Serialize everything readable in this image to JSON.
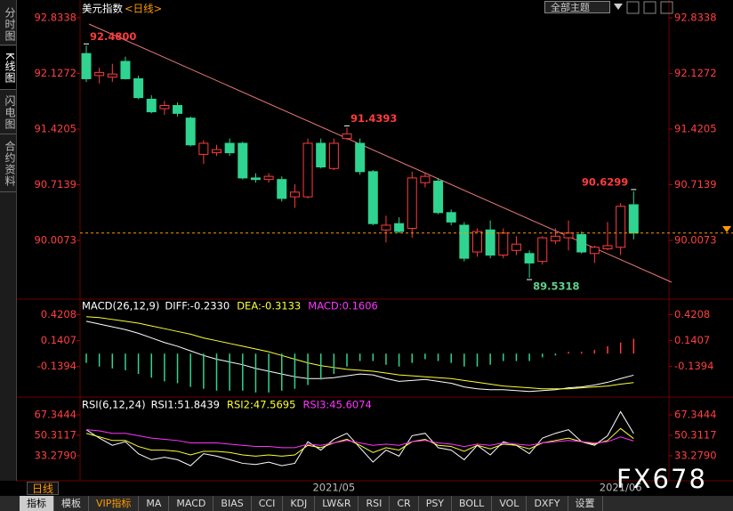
{
  "chart_data": [
    {
      "type": "candlestick",
      "title": "美元指数",
      "subtitle": "<日线>",
      "up_color": "#ff3c3c",
      "down_color": "#2fd490",
      "categories": [
        null,
        null,
        null,
        null,
        null,
        null,
        null,
        null,
        null,
        null,
        null,
        null,
        null,
        null,
        null,
        null,
        null,
        null,
        null,
        "2021/05",
        null,
        null,
        null,
        null,
        null,
        null,
        null,
        null,
        null,
        null,
        null,
        null,
        null,
        null,
        null,
        null,
        null,
        null,
        null,
        null,
        null,
        "2021/06",
        null
      ],
      "open": [
        92.38,
        92.1,
        92.08,
        92.28,
        92.06,
        91.8,
        91.68,
        91.72,
        91.56,
        91.1,
        91.12,
        91.24,
        91.24,
        90.8,
        90.78,
        90.78,
        90.56,
        90.56,
        91.24,
        90.92,
        91.3,
        91.24,
        90.88,
        90.14,
        90.22,
        90.16,
        90.74,
        90.76,
        90.36,
        90.2,
        89.86,
        90.14,
        89.82,
        89.88,
        89.84,
        89.74,
        90.0,
        90.04,
        90.08,
        89.84,
        89.9,
        89.92,
        90.46
      ],
      "high": [
        92.48,
        92.2,
        92.25,
        92.34,
        92.1,
        91.85,
        91.78,
        91.76,
        91.58,
        91.28,
        91.22,
        91.3,
        91.26,
        90.86,
        90.86,
        90.82,
        90.72,
        91.3,
        91.3,
        91.3,
        91.4393,
        91.3,
        90.9,
        90.32,
        90.3,
        90.88,
        90.86,
        90.8,
        90.4,
        90.24,
        90.16,
        90.26,
        90.16,
        90.06,
        89.88,
        90.06,
        90.16,
        90.26,
        90.12,
        89.94,
        90.24,
        90.48,
        90.6299
      ],
      "low": [
        92.02,
        92.0,
        92.02,
        92.05,
        91.8,
        91.62,
        91.6,
        91.58,
        91.2,
        90.98,
        91.08,
        91.08,
        90.78,
        90.74,
        90.74,
        90.5,
        90.42,
        90.54,
        90.92,
        90.9,
        91.28,
        90.84,
        90.2,
        89.98,
        90.1,
        90.04,
        90.68,
        90.34,
        90.2,
        89.74,
        89.8,
        89.78,
        89.78,
        89.82,
        89.5318,
        89.7,
        89.96,
        89.88,
        89.84,
        89.72,
        89.88,
        89.82,
        90.02
      ],
      "close": [
        92.06,
        92.14,
        92.12,
        92.06,
        91.82,
        91.64,
        91.72,
        91.62,
        91.22,
        91.24,
        91.16,
        91.12,
        90.8,
        90.78,
        90.82,
        90.54,
        90.62,
        91.24,
        90.94,
        91.24,
        91.36,
        90.88,
        90.22,
        90.2,
        90.12,
        90.8,
        90.82,
        90.36,
        90.24,
        89.78,
        90.12,
        89.82,
        90.1,
        89.96,
        89.72,
        90.04,
        90.06,
        90.1,
        89.86,
        89.92,
        89.94,
        90.44,
        90.1
      ],
      "markers": [
        {
          "value": 92.48,
          "label": "92.4800"
        },
        91.4393,
        90.6299,
        89.5318
      ],
      "ylim": [
        89.2724,
        93.0034
      ],
      "yticks": [
        92.8338,
        92.1272,
        91.4205,
        90.7139,
        90.0073
      ],
      "last_price_color": "#ff9a00"
    },
    {
      "type": "macd",
      "title": "MACD(26,12,9)",
      "up_color": "#ff3c3c",
      "down_color": "#2fd490",
      "series": [
        {
          "name": "DIFF:-0.2330",
          "color": "#ffffff",
          "values": [
            0.35,
            0.32,
            0.29,
            0.26,
            0.22,
            0.17,
            0.12,
            0.08,
            0.03,
            -0.02,
            -0.06,
            -0.09,
            -0.12,
            -0.16,
            -0.19,
            -0.22,
            -0.25,
            -0.27,
            -0.27,
            -0.26,
            -0.24,
            -0.22,
            -0.23,
            -0.27,
            -0.3,
            -0.29,
            -0.28,
            -0.3,
            -0.32,
            -0.36,
            -0.38,
            -0.39,
            -0.39,
            -0.4,
            -0.41,
            -0.4,
            -0.39,
            -0.37,
            -0.36,
            -0.34,
            -0.31,
            -0.27,
            -0.233
          ]
        },
        {
          "name": "DEA:-0.3133",
          "color": "#ffff33",
          "values": [
            0.4,
            0.39,
            0.37,
            0.35,
            0.33,
            0.3,
            0.27,
            0.24,
            0.21,
            0.17,
            0.14,
            0.11,
            0.08,
            0.05,
            0.02,
            -0.02,
            -0.06,
            -0.1,
            -0.13,
            -0.15,
            -0.17,
            -0.18,
            -0.19,
            -0.21,
            -0.23,
            -0.24,
            -0.25,
            -0.26,
            -0.27,
            -0.29,
            -0.31,
            -0.33,
            -0.35,
            -0.36,
            -0.37,
            -0.38,
            -0.38,
            -0.38,
            -0.37,
            -0.36,
            -0.35,
            -0.33,
            -0.3133
          ]
        },
        {
          "name": "MACD:0.1606",
          "color": "#ff33ff",
          "kind": "bar",
          "values": [
            -0.1,
            -0.14,
            -0.16,
            -0.18,
            -0.22,
            -0.26,
            -0.3,
            -0.32,
            -0.36,
            -0.38,
            -0.4,
            -0.4,
            -0.4,
            -0.42,
            -0.42,
            -0.4,
            -0.38,
            -0.34,
            -0.28,
            -0.22,
            -0.14,
            -0.08,
            -0.08,
            -0.12,
            -0.14,
            -0.1,
            -0.06,
            -0.08,
            -0.1,
            -0.14,
            -0.14,
            -0.12,
            -0.08,
            -0.08,
            -0.08,
            -0.04,
            -0.02,
            0.02,
            0.02,
            0.04,
            0.08,
            0.12,
            0.1606
          ]
        }
      ],
      "ylim": [
        -0.46,
        0.58
      ],
      "yticks": [
        0.4208,
        0.1407,
        -0.1394
      ]
    },
    {
      "type": "line",
      "title": "RSI(6,12,24)",
      "series": [
        {
          "name": "RSI1:51.8439",
          "color": "#ffffff",
          "values": [
            55,
            48,
            42,
            45,
            35,
            30,
            32,
            30,
            25,
            35,
            33,
            30,
            27,
            26,
            28,
            25,
            27,
            45,
            38,
            47,
            52,
            40,
            28,
            38,
            33,
            50,
            52,
            40,
            38,
            30,
            42,
            34,
            45,
            42,
            35,
            48,
            52,
            55,
            45,
            42,
            50,
            70,
            51.8439
          ]
        },
        {
          "name": "RSI2:47.5695",
          "color": "#ffff33",
          "values": [
            52,
            49,
            46,
            46,
            41,
            38,
            38,
            37,
            34,
            37,
            37,
            36,
            34,
            33,
            34,
            33,
            34,
            42,
            40,
            44,
            47,
            42,
            36,
            40,
            38,
            45,
            47,
            42,
            41,
            37,
            42,
            39,
            43,
            42,
            39,
            44,
            46,
            48,
            45,
            43,
            46,
            56,
            47.5695
          ]
        },
        {
          "name": "RSI3:45.6074",
          "color": "#ff33ff",
          "values": [
            55,
            54,
            52,
            52,
            50,
            48,
            47,
            46,
            44,
            44,
            44,
            43,
            42,
            41,
            41,
            40,
            40,
            43,
            42,
            44,
            46,
            44,
            42,
            43,
            42,
            45,
            46,
            44,
            43,
            41,
            43,
            42,
            44,
            43,
            42,
            44,
            45,
            46,
            45,
            44,
            45,
            49,
            45.6074
          ]
        }
      ],
      "ylim": [
        12.5,
        80.7
      ],
      "yticks": [
        67.3444,
        50.3117,
        {
          "value": 33.279,
          "label": "33.2790"
        }
      ]
    }
  ],
  "sidebar_tabs": [
    "分时图",
    "K线图",
    "闪电图",
    "合约资料"
  ],
  "theme_menu": "全部主题",
  "period_label": "日线",
  "toolbar_tabs": [
    "指标",
    "模板",
    "VIP指标",
    "MA",
    "MACD",
    "BIAS",
    "CCI",
    "KDJ",
    "LW&R",
    "RSI",
    "CR",
    "PSY",
    "BOLL",
    "VOL",
    "DXFY",
    "设置"
  ],
  "watermark": "FX678"
}
